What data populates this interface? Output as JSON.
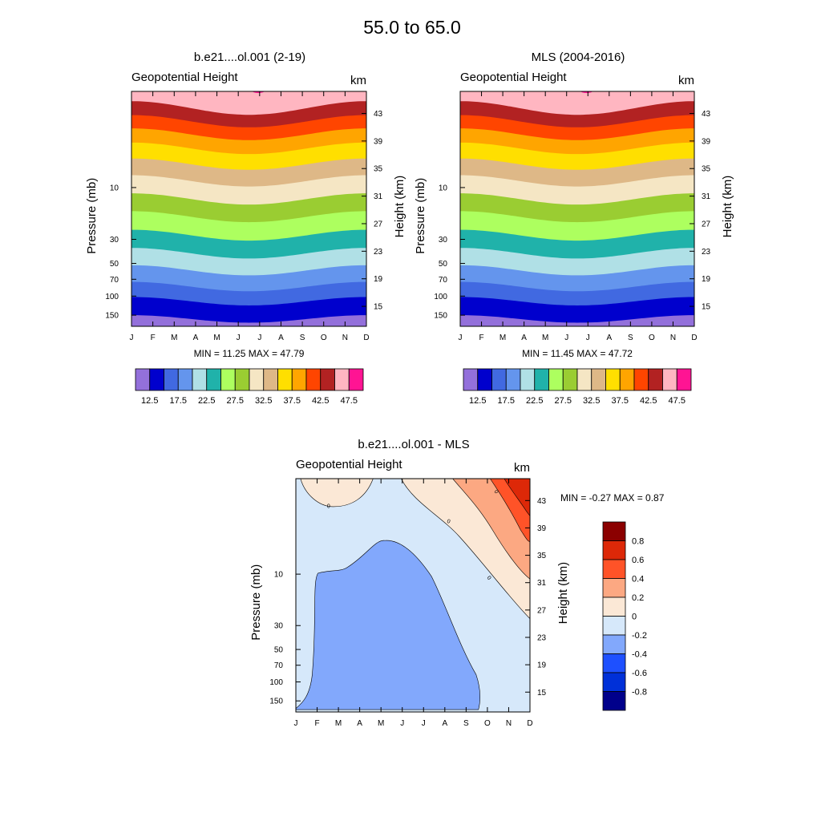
{
  "title": "55.0 to  65.0",
  "chart_data": [
    {
      "type": "contour",
      "panel_title": "b.e21....ol.001 (2-19)",
      "var_label": "Geopotential Height",
      "right_unit": "km",
      "x_months": [
        "J",
        "F",
        "M",
        "A",
        "M",
        "J",
        "J",
        "A",
        "S",
        "O",
        "N",
        "D"
      ],
      "ylabel_left": "Pressure (mb)",
      "ylabel_right": "Height (km)",
      "pressure_ticks": [
        "10",
        "30",
        "50",
        "70",
        "100",
        "150"
      ],
      "height_ticks": [
        "43",
        "39",
        "35",
        "31",
        "27",
        "23",
        "19",
        "15"
      ],
      "stats": "MIN =  11.25  MAX =  47.79",
      "min": 11.25,
      "max": 47.79,
      "contour_levels": [
        12.5,
        15,
        17.5,
        20,
        22.5,
        25,
        27.5,
        30,
        32.5,
        35,
        37.5,
        40,
        42.5,
        45,
        47.5
      ],
      "colorbar_labels": [
        "12.5",
        "17.5",
        "22.5",
        "27.5",
        "32.5",
        "37.5",
        "42.5",
        "47.5"
      ],
      "colors": [
        "#9370db",
        "#0000cd",
        "#4169e1",
        "#6495ed",
        "#b0e0e6",
        "#20b2aa",
        "#adff5f",
        "#9acd32",
        "#f5e6c4",
        "#deb887",
        "#ffdf00",
        "#ffa500",
        "#ff4500",
        "#b22222",
        "#ffb6c1",
        "#ff1493"
      ]
    },
    {
      "type": "contour",
      "panel_title": "MLS (2004-2016)",
      "var_label": "Geopotential Height",
      "right_unit": "km",
      "x_months": [
        "J",
        "F",
        "M",
        "A",
        "M",
        "J",
        "J",
        "A",
        "S",
        "O",
        "N",
        "D"
      ],
      "ylabel_left": "Pressure (mb)",
      "ylabel_right": "Height (km)",
      "pressure_ticks": [
        "10",
        "30",
        "50",
        "70",
        "100",
        "150"
      ],
      "height_ticks": [
        "43",
        "39",
        "35",
        "31",
        "27",
        "23",
        "19",
        "15"
      ],
      "stats": "MIN =  11.45  MAX =  47.72",
      "min": 11.45,
      "max": 47.72,
      "contour_levels": [
        12.5,
        15,
        17.5,
        20,
        22.5,
        25,
        27.5,
        30,
        32.5,
        35,
        37.5,
        40,
        42.5,
        45,
        47.5
      ],
      "colorbar_labels": [
        "12.5",
        "17.5",
        "22.5",
        "27.5",
        "32.5",
        "37.5",
        "42.5",
        "47.5"
      ],
      "colors": [
        "#9370db",
        "#0000cd",
        "#4169e1",
        "#6495ed",
        "#b0e0e6",
        "#20b2aa",
        "#adff5f",
        "#9acd32",
        "#f5e6c4",
        "#deb887",
        "#ffdf00",
        "#ffa500",
        "#ff4500",
        "#b22222",
        "#ffb6c1",
        "#ff1493"
      ]
    },
    {
      "type": "contour",
      "panel_title": "b.e21....ol.001 - MLS",
      "var_label": "Geopotential Height",
      "right_unit": "km",
      "x_months": [
        "J",
        "F",
        "M",
        "A",
        "M",
        "J",
        "J",
        "A",
        "S",
        "O",
        "N",
        "D"
      ],
      "ylabel_left": "Pressure (mb)",
      "ylabel_right": "Height (km)",
      "pressure_ticks": [
        "10",
        "30",
        "50",
        "70",
        "100",
        "150"
      ],
      "height_ticks": [
        "43",
        "39",
        "35",
        "31",
        "27",
        "23",
        "19",
        "15"
      ],
      "stats": "MIN =  -0.27  MAX =   0.87",
      "min": -0.27,
      "max": 0.87,
      "contour_levels": [
        -0.8,
        -0.6,
        -0.4,
        -0.2,
        0,
        0.2,
        0.4,
        0.6,
        0.8
      ],
      "colorbar_labels": [
        "0.8",
        "0.6",
        "0.4",
        "0.2",
        "0",
        "-0.2",
        "-0.4",
        "-0.6",
        "-0.8"
      ],
      "contour_line_label": "0",
      "colors": [
        "#00008b",
        "#0030d8",
        "#1e50ff",
        "#82a8fc",
        "#d6e8fa",
        "#fbe8d6",
        "#fca882",
        "#ff5328",
        "#dd2808",
        "#8b0000"
      ]
    }
  ]
}
